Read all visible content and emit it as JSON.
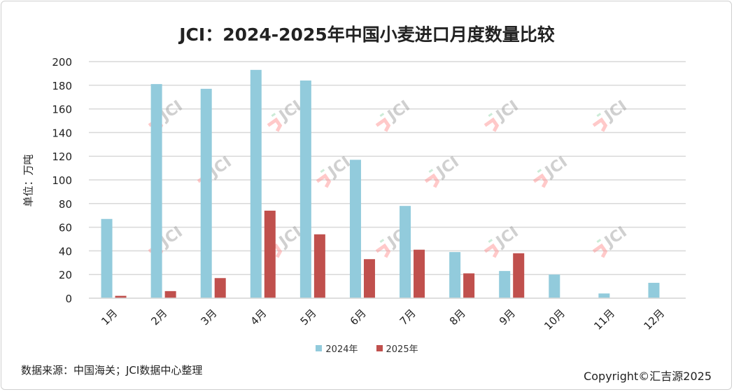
{
  "chart_data": {
    "type": "bar",
    "title": "JCI：2024-2025年中国小麦进口月度数量比较",
    "ylabel": "单位：万吨",
    "xlabel": "",
    "ylim": [
      0,
      200
    ],
    "yticks": [
      0,
      20,
      40,
      60,
      80,
      100,
      120,
      140,
      160,
      180,
      200
    ],
    "grid": true,
    "legend": "bottom",
    "categories": [
      "1月",
      "2月",
      "3月",
      "4月",
      "5月",
      "6月",
      "7月",
      "8月",
      "9月",
      "10月",
      "11月",
      "12月"
    ],
    "series": [
      {
        "name": "2024年",
        "color": "#92cbdc",
        "values": [
          67,
          181,
          177,
          193,
          184,
          117,
          78,
          39,
          23,
          20,
          4,
          13
        ]
      },
      {
        "name": "2025年",
        "color": "#c0504d",
        "values": [
          2,
          6,
          17,
          74,
          54,
          33,
          41,
          21,
          38,
          null,
          null,
          null
        ]
      }
    ]
  },
  "footer": {
    "source": "数据来源：中国海关；JCI数据中心整理",
    "copyright": "Copyright©汇吉源2025"
  },
  "watermark": "JCI"
}
